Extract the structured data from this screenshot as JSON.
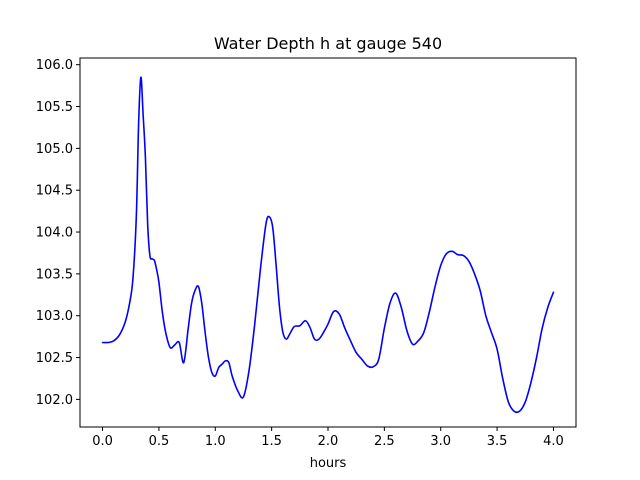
{
  "chart_data": {
    "type": "line",
    "title": "Water Depth h at gauge 540",
    "xlabel": "hours",
    "ylabel": "",
    "xlim": [
      -0.2,
      4.2
    ],
    "ylim": [
      101.67,
      106.08
    ],
    "xticks": [
      0.0,
      0.5,
      1.0,
      1.5,
      2.0,
      2.5,
      3.0,
      3.5,
      4.0
    ],
    "xtick_labels": [
      "0.0",
      "0.5",
      "1.0",
      "1.5",
      "2.0",
      "2.5",
      "3.0",
      "3.5",
      "4.0"
    ],
    "yticks": [
      102.0,
      102.5,
      103.0,
      103.5,
      104.0,
      104.5,
      105.0,
      105.5,
      106.0
    ],
    "ytick_labels": [
      "102.0",
      "102.5",
      "103.0",
      "103.5",
      "104.0",
      "104.5",
      "105.0",
      "105.5",
      "106.0"
    ],
    "grid": false,
    "series": [
      {
        "color": "#0000ff",
        "x": [
          0.0,
          0.05,
          0.1,
          0.15,
          0.2,
          0.24,
          0.27,
          0.3,
          0.32,
          0.34,
          0.36,
          0.38,
          0.4,
          0.42,
          0.44,
          0.46,
          0.48,
          0.5,
          0.53,
          0.56,
          0.6,
          0.64,
          0.68,
          0.72,
          0.76,
          0.79,
          0.82,
          0.85,
          0.88,
          0.91,
          0.94,
          0.97,
          1.0,
          1.03,
          1.06,
          1.09,
          1.12,
          1.15,
          1.2,
          1.25,
          1.3,
          1.35,
          1.4,
          1.45,
          1.48,
          1.51,
          1.54,
          1.57,
          1.6,
          1.63,
          1.66,
          1.7,
          1.75,
          1.8,
          1.84,
          1.88,
          1.92,
          1.96,
          2.0,
          2.05,
          2.1,
          2.15,
          2.2,
          2.25,
          2.3,
          2.35,
          2.4,
          2.45,
          2.5,
          2.55,
          2.6,
          2.65,
          2.7,
          2.75,
          2.8,
          2.85,
          2.9,
          2.95,
          3.0,
          3.05,
          3.1,
          3.15,
          3.2,
          3.25,
          3.3,
          3.35,
          3.4,
          3.45,
          3.5,
          3.55,
          3.6,
          3.65,
          3.7,
          3.75,
          3.8,
          3.85,
          3.9,
          3.95,
          4.0
        ],
        "y": [
          102.68,
          102.68,
          102.7,
          102.77,
          102.92,
          103.15,
          103.45,
          104.2,
          105.3,
          105.85,
          105.4,
          104.9,
          104.1,
          103.72,
          103.68,
          103.66,
          103.55,
          103.4,
          103.05,
          102.8,
          102.62,
          102.65,
          102.68,
          102.44,
          102.85,
          103.15,
          103.3,
          103.35,
          103.15,
          102.8,
          102.5,
          102.32,
          102.28,
          102.38,
          102.42,
          102.46,
          102.44,
          102.28,
          102.1,
          102.03,
          102.35,
          102.9,
          103.55,
          104.1,
          104.18,
          104.05,
          103.6,
          103.1,
          102.8,
          102.72,
          102.78,
          102.87,
          102.88,
          102.94,
          102.86,
          102.72,
          102.72,
          102.8,
          102.9,
          103.05,
          103.02,
          102.85,
          102.7,
          102.56,
          102.48,
          102.4,
          102.39,
          102.48,
          102.85,
          103.15,
          103.27,
          103.1,
          102.82,
          102.66,
          102.7,
          102.8,
          103.05,
          103.35,
          103.6,
          103.74,
          103.77,
          103.73,
          103.72,
          103.65,
          103.5,
          103.3,
          103.0,
          102.8,
          102.6,
          102.25,
          101.97,
          101.86,
          101.86,
          101.97,
          102.2,
          102.5,
          102.85,
          103.1,
          103.28
        ]
      }
    ]
  }
}
